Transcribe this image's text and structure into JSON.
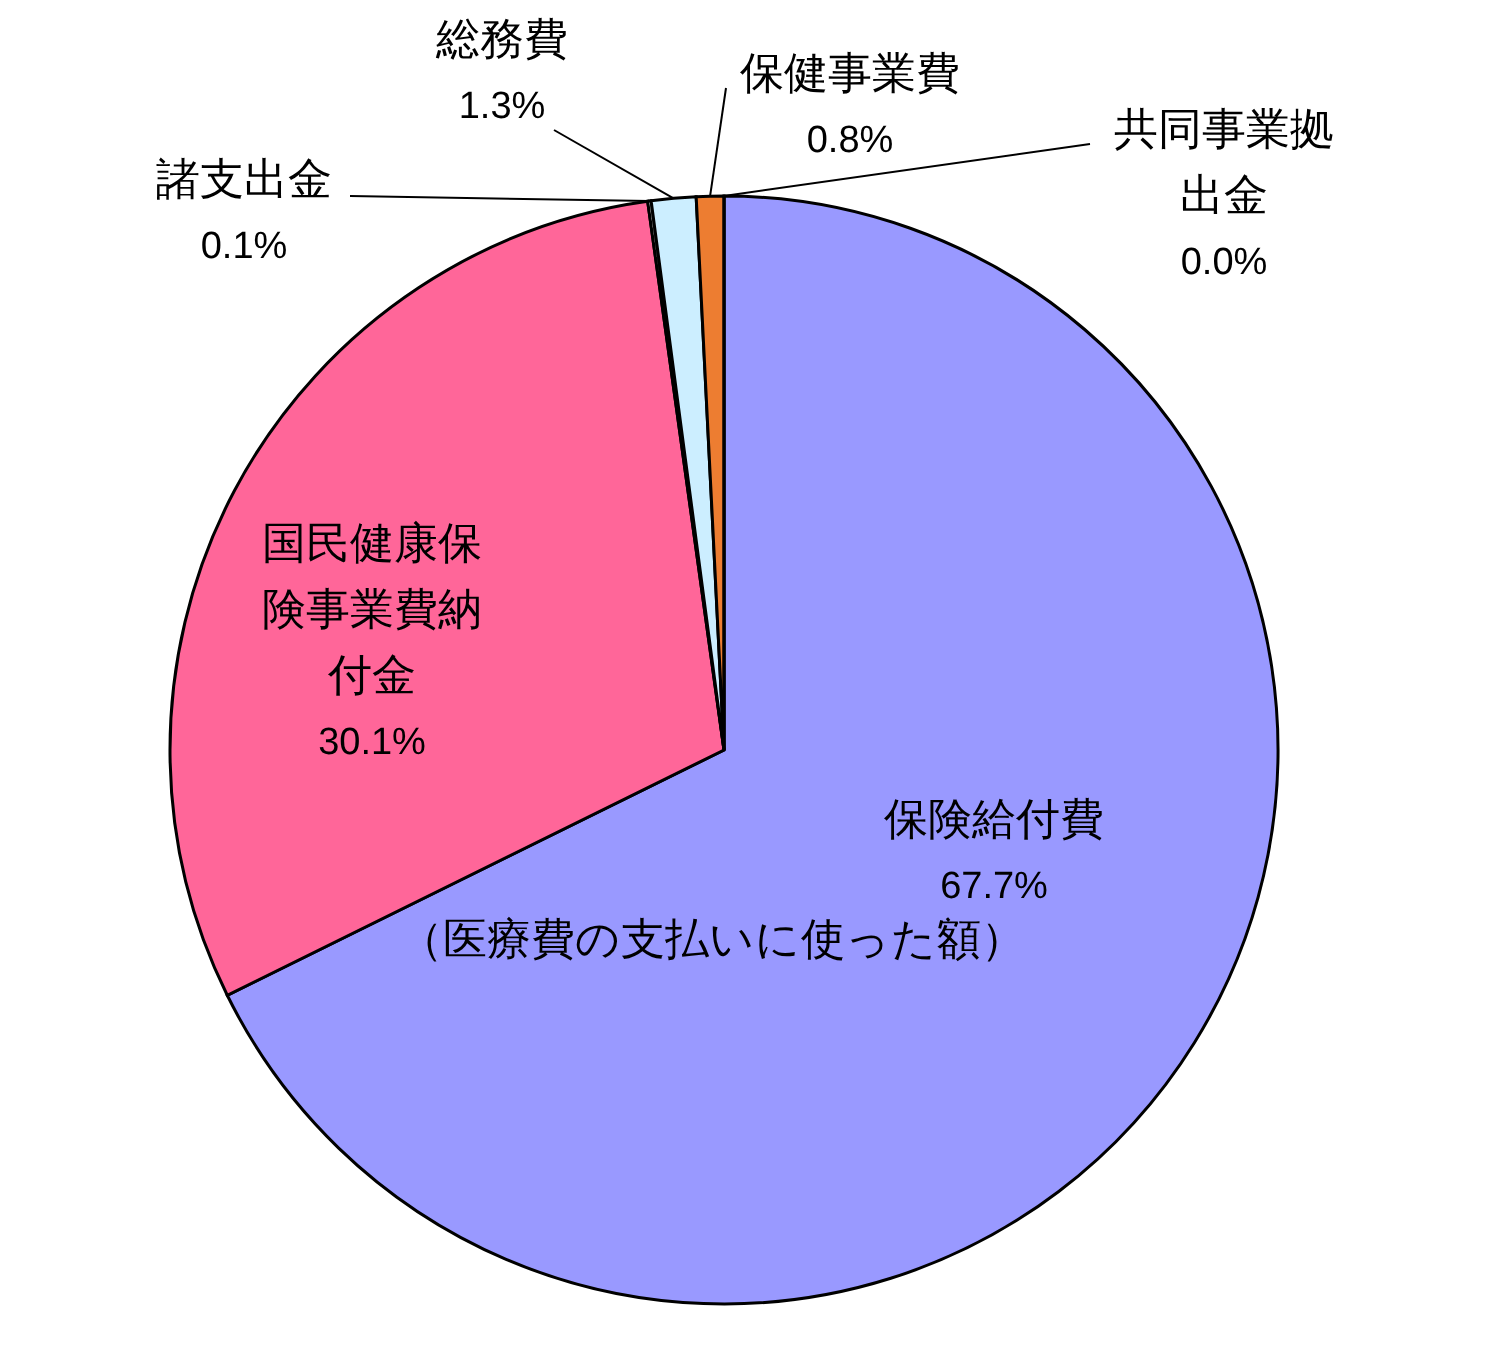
{
  "chart_data": {
    "type": "pie",
    "categories": [
      "保険給付費",
      "国民健康保険事業費納付金",
      "諸支出金",
      "総務費",
      "保健事業費",
      "共同事業拠出金"
    ],
    "values": [
      67.7,
      30.1,
      0.1,
      1.3,
      0.8,
      0.0
    ],
    "colors": [
      "#9999ff",
      "#ff6699",
      "#ffffff",
      "#cceeff",
      "#ed7d31",
      "#ffff99"
    ],
    "value_labels": [
      "67.7%",
      "30.1%",
      "0.1%",
      "1.3%",
      "0.8%",
      "0.0%"
    ],
    "annotations": [
      "（医療費の支払いに使った額）"
    ]
  }
}
